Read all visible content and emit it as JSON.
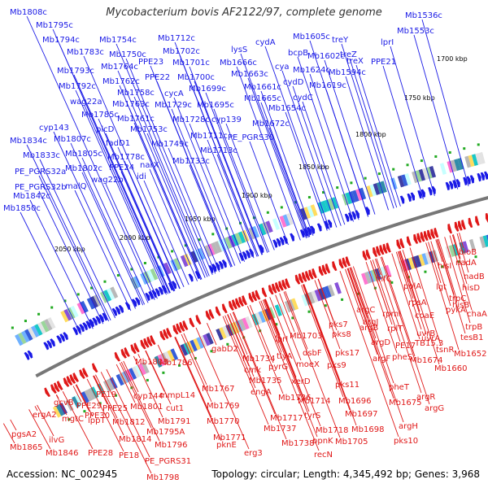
{
  "title": "Mycobacterium bovis AF2122/97, complete genome",
  "footer": {
    "accession": "Accession: NC_002945",
    "topology": "Topology: circular; Length: 4,345,492 bp; Genes: 3,968"
  },
  "colors": {
    "forward": "#1a1ae6",
    "reverse": "#e01818",
    "backbone": "#777777",
    "marker": "#22aa22"
  },
  "ticks": [
    "1700 kbp",
    "1750 kbp",
    "1800 kbp",
    "1850 kbp",
    "1900 kbp",
    "1950 kbp",
    "2000 kbp",
    "2050 kbp"
  ],
  "forward_genes": [
    "Mb1808c",
    "Mb1795c",
    "Mb1794c",
    "Mb1783c",
    "Mb1793c",
    "Mb1792c",
    "wag22a",
    "Mb1785c",
    "cyp143",
    "Mb1807c",
    "Mb1834c",
    "Mb1833c",
    "Mb1805c",
    "Mb1802c",
    "PE_PGRS32a",
    "PE_PGRS32b",
    "wag22b",
    "malQ",
    "Mb1842c",
    "Mb1850c",
    "Mb1754c",
    "Mb1750c",
    "Mb1764c",
    "Mb1762c",
    "Mb1758c",
    "Mb1763c",
    "Mb1761c",
    "plcD",
    "fadD1",
    "Mb1778c",
    "PPE24",
    "idi",
    "Mb1712c",
    "PPE23",
    "Mb1702c",
    "Mb1701c",
    "PPE22",
    "cycA",
    "Mb1700c",
    "Mb1729c",
    "Mb1699c",
    "Mb1728c",
    "Mb1695c",
    "Mb1753c",
    "Mb1749c",
    "narX",
    "Mb1733c",
    "lysS",
    "Mb1666c",
    "cydA",
    "Mb1663c",
    "cya",
    "bcpB",
    "Mb1605c",
    "Mb1661c",
    "cydD",
    "Mb1665c",
    "cydC",
    "Mb1654c",
    "Mb1672c",
    "cyp139",
    "Mb1711c",
    "Mb1713c",
    "PE_PGRS30",
    "treY",
    "treZ",
    "treX",
    "Mb1602c",
    "Mb1624c",
    "Mb1594c",
    "Mb1619c",
    "PPE21",
    "lprI",
    "Mb1553c",
    "Mb1536c"
  ],
  "reverse_genes": [
    "bioB",
    "nadA",
    "hisI",
    "nadB",
    "lgt",
    "hisD",
    "trpC",
    "hisB",
    "pykA",
    "chaA",
    "trpB",
    "tesB1",
    "Mb1652",
    "polA",
    "infC",
    "rpsA",
    "rpmI",
    "coaE",
    "argC",
    "argJ",
    "rplT",
    "uvrB",
    "argB",
    "PE17",
    "uvrA",
    "TB15.3",
    "argD",
    "pheS",
    "tsnR",
    "Mb1660",
    "argF",
    "Mb1674",
    "pheT",
    "argR",
    "Mb1675",
    "argG",
    "argH",
    "pks10",
    "lprI",
    "pks7",
    "Mb1703",
    "pks8",
    "pks17",
    "dsbF",
    "moeX",
    "pks9",
    "pks11",
    "Mb1696",
    "Mb1697",
    "Mb1698",
    "Mb1705",
    "Mb1734",
    "tlyA",
    "cmk",
    "pyrG",
    "Mb1735",
    "engA",
    "Mb1736",
    "xerD",
    "Mb1714",
    "Mb1717",
    "tyrS",
    "Mb1737",
    "Mb1718",
    "ppnK",
    "Mb1738",
    "recN",
    "gabD2",
    "Mb1767",
    "Mb1769",
    "Mb1770",
    "Mb1771",
    "pknE",
    "Mb1786",
    "mmpL14",
    "cut1",
    "Mb1791",
    "Mb1795A",
    "Mb1796",
    "PE_PGRS31",
    "Mb1798",
    "Mb1803",
    "cyp144",
    "Mb1801",
    "Mb1812",
    "Mb1814",
    "PE18",
    "PE19",
    "PPE25",
    "PPE29",
    "PPE30",
    "mgtC",
    "lppT",
    "PPE28",
    "Mb1865",
    "Mb1846",
    "ilvG",
    "ergA2",
    "pgsA2",
    "gcvB",
    "erg3"
  ]
}
